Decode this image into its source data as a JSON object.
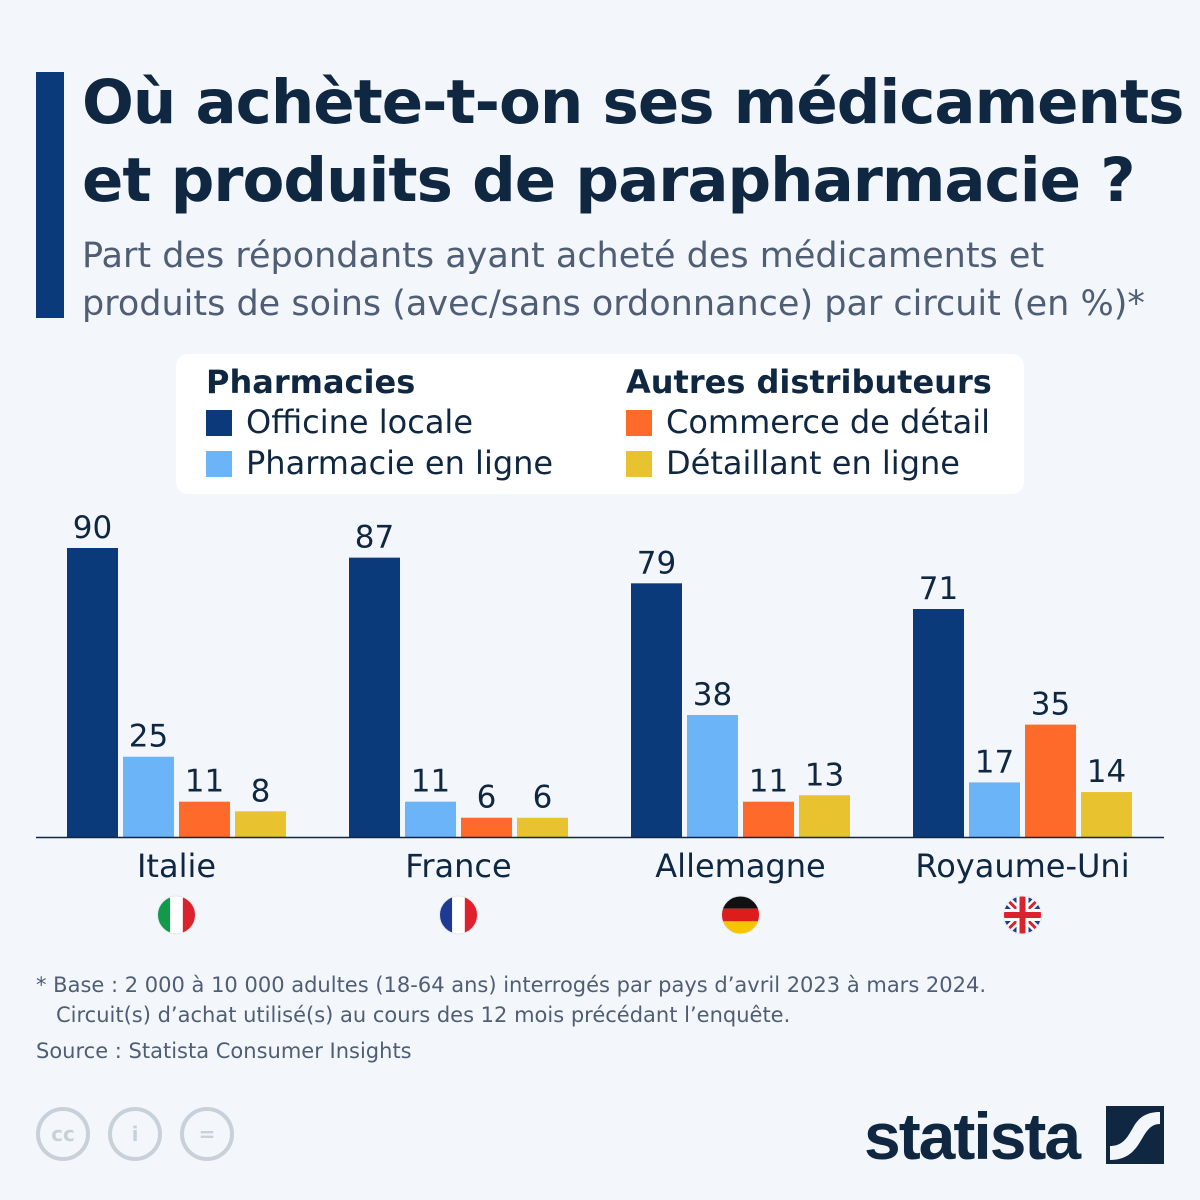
{
  "header": {
    "title": "Où achète-t-on ses médicaments et produits de parapharmacie ?",
    "subtitle": "Part des répondants ayant acheté des médicaments et produits de soins (avec/sans ordonnance) par circuit (en %)*"
  },
  "legend": {
    "group1": "Pharmacies",
    "group2": "Autres distributeurs",
    "items": [
      "Officine locale",
      "Pharmacie en ligne",
      "Commerce de détail",
      "Détaillant en ligne"
    ]
  },
  "chart_data": {
    "type": "bar",
    "title": "Où achète-t-on ses médicaments et produits de parapharmacie ?",
    "categories": [
      "Italie",
      "France",
      "Allemagne",
      "Royaume-Uni"
    ],
    "flags": [
      "italy-flag",
      "france-flag",
      "germany-flag",
      "uk-flag"
    ],
    "series": [
      {
        "name": "Officine locale",
        "color": "#0a3a7a",
        "values": [
          90,
          87,
          79,
          71
        ]
      },
      {
        "name": "Pharmacie en ligne",
        "color": "#6cb4f8",
        "values": [
          25,
          11,
          38,
          17
        ]
      },
      {
        "name": "Commerce de détail",
        "color": "#fe6a2a",
        "values": [
          11,
          6,
          11,
          35
        ]
      },
      {
        "name": "Détaillant en ligne",
        "color": "#e9c32f",
        "values": [
          8,
          6,
          13,
          14
        ]
      }
    ],
    "ylim": [
      0,
      90
    ],
    "grid": false,
    "legend_placement": "top"
  },
  "footer": {
    "note": "* Base : 2 000 à 10 000 adultes (18-64 ans) interrogés par pays d’avril 2023 à mars 2024.",
    "note2": "Circuit(s) d’achat utilisé(s) au cours des 12 mois précédant l’enquête.",
    "source": "Source : Statista Consumer Insights",
    "logo": "statista"
  }
}
